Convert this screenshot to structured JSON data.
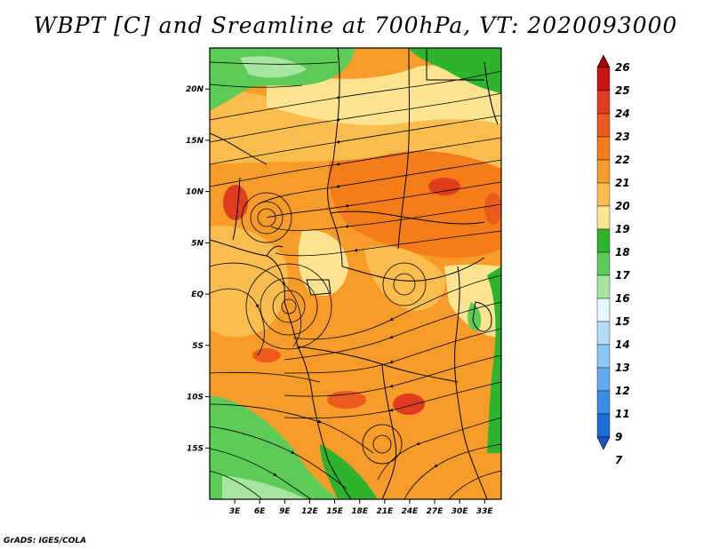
{
  "title": "WBPT [C] and Sreamline at 700hPa, VT: 2020093000",
  "credit": "GrADS: IGES/COLA",
  "map": {
    "lat_labels": [
      "20N",
      "15N",
      "10N",
      "5N",
      "EQ",
      "5S",
      "10S",
      "15S"
    ],
    "lon_labels": [
      "3E",
      "6E",
      "9E",
      "12E",
      "15E",
      "18E",
      "21E",
      "24E",
      "27E",
      "30E",
      "33E"
    ],
    "lat_range": [
      -20,
      24
    ],
    "lon_range": [
      0,
      35
    ],
    "line_color": "#000000"
  },
  "colorbar": {
    "labels": [
      "26",
      "25",
      "24",
      "23",
      "22",
      "21",
      "20",
      "19",
      "18",
      "17",
      "16",
      "15",
      "14",
      "13",
      "12",
      "11",
      "9",
      "7"
    ],
    "colors": [
      "#a00000",
      "#c81414",
      "#e03c1e",
      "#ec5a1e",
      "#f47d19",
      "#f79c28",
      "#fbbd4d",
      "#fde490",
      "#2eb32e",
      "#5ccb58",
      "#a6e6a0",
      "#e6f7fc",
      "#b4dcf7",
      "#8cc7f5",
      "#64aaf0",
      "#3c8ce6",
      "#1e6ed7",
      "#1e50c8"
    ]
  }
}
